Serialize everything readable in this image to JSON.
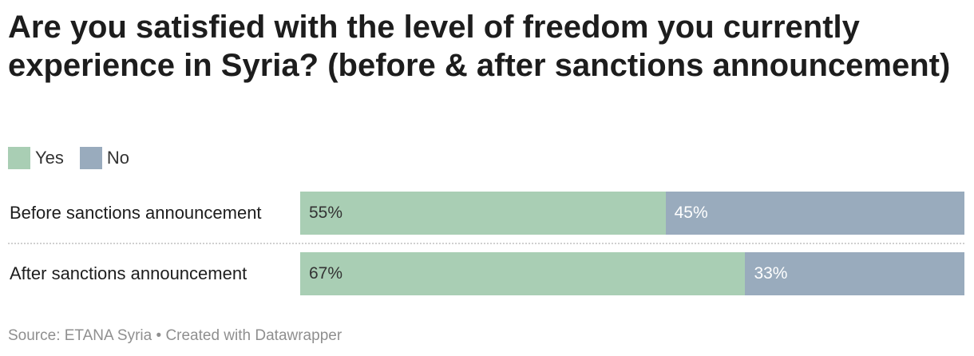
{
  "colors": {
    "yes": "#a9ceb4",
    "no": "#99abbd"
  },
  "legend": [
    {
      "label": "Yes",
      "color": "#a9ceb4"
    },
    {
      "label": "No",
      "color": "#99abbd"
    }
  ],
  "footer": {
    "source": "Source: ETANA Syria",
    "separator": " • ",
    "credit": "Created with Datawrapper"
  },
  "chart_data": {
    "type": "bar",
    "orientation": "horizontal",
    "stacked": true,
    "title": "Are you satisfied with the level of freedom you currently experience in Syria? (before & after sanctions announcement)",
    "categories": [
      "Before sanctions announcement",
      "After sanctions announcement"
    ],
    "series": [
      {
        "name": "Yes",
        "values": [
          55,
          67
        ],
        "labels": [
          "55%",
          "67%"
        ],
        "color": "#a9ceb4",
        "text_color": "#333333"
      },
      {
        "name": "No",
        "values": [
          45,
          33
        ],
        "labels": [
          "45%",
          "33%"
        ],
        "color": "#99abbd",
        "text_color": "#ffffff"
      }
    ],
    "xlim": [
      0,
      100
    ],
    "legend_position": "top-left",
    "grid": false
  }
}
